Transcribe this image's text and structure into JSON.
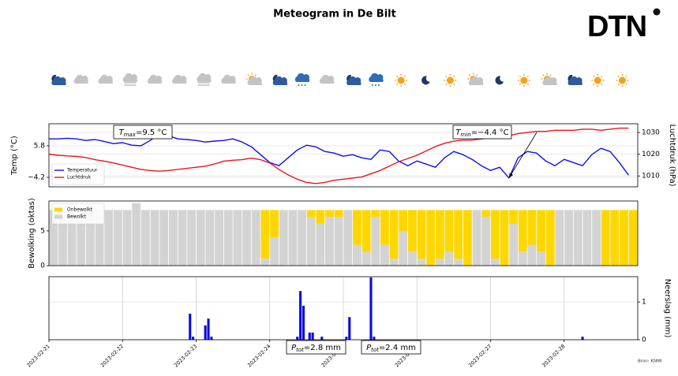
{
  "title": "Meteogram in De Bilt",
  "logo": "DTN",
  "source": "Bron: KNMI",
  "chart_data": [
    {
      "type": "line",
      "ylabel": "Temp (°C)",
      "y2label": "Luchtdruk (hPa)",
      "x": [
        "2023-02-21T00:00",
        "2023-02-21T03:00",
        "2023-02-21T06:00",
        "2023-02-21T09:00",
        "2023-02-21T12:00",
        "2023-02-21T15:00",
        "2023-02-21T18:00",
        "2023-02-21T21:00",
        "2023-02-22T00:00",
        "2023-02-22T03:00",
        "2023-02-22T06:00",
        "2023-02-22T09:00",
        "2023-02-22T12:00",
        "2023-02-22T15:00",
        "2023-02-22T18:00",
        "2023-02-22T21:00",
        "2023-02-23T00:00",
        "2023-02-23T03:00",
        "2023-02-23T06:00",
        "2023-02-23T09:00",
        "2023-02-23T12:00",
        "2023-02-23T15:00",
        "2023-02-23T18:00",
        "2023-02-23T21:00",
        "2023-02-24T00:00",
        "2023-02-24T03:00",
        "2023-02-24T06:00",
        "2023-02-24T09:00",
        "2023-02-24T12:00",
        "2023-02-24T15:00",
        "2023-02-24T18:00",
        "2023-02-24T21:00",
        "2023-02-25T00:00",
        "2023-02-25T03:00",
        "2023-02-25T06:00",
        "2023-02-25T09:00",
        "2023-02-25T12:00",
        "2023-02-25T15:00",
        "2023-02-25T18:00",
        "2023-02-25T21:00",
        "2023-02-26T00:00",
        "2023-02-26T03:00",
        "2023-02-26T06:00",
        "2023-02-26T09:00",
        "2023-02-26T12:00",
        "2023-02-26T15:00",
        "2023-02-26T18:00",
        "2023-02-26T21:00",
        "2023-02-27T00:00",
        "2023-02-27T03:00",
        "2023-02-27T06:00",
        "2023-02-27T09:00",
        "2023-02-27T12:00",
        "2023-02-27T15:00",
        "2023-02-27T18:00",
        "2023-02-27T21:00",
        "2023-02-28T00:00",
        "2023-02-28T03:00",
        "2023-02-28T06:00",
        "2023-02-28T09:00",
        "2023-02-28T12:00",
        "2023-02-28T15:00",
        "2023-02-28T18:00",
        "2023-02-28T21:00"
      ],
      "xlim": [
        "2023-02-21",
        "2023-03-01"
      ],
      "ylim": [
        -7.2,
        12.8
      ],
      "yticks": [
        {
          "value": -4.2,
          "label": "−4.2"
        },
        5.8
      ],
      "y2lim": [
        1005,
        1034
      ],
      "y2ticks": [
        1010,
        1020,
        1030
      ],
      "grid": true,
      "legend": "lower left",
      "series": [
        {
          "name": "Temperatuur",
          "color": "#1010f0",
          "values": [
            8.0,
            8.0,
            8.2,
            8.0,
            7.5,
            7.8,
            7.2,
            6.5,
            6.8,
            6.0,
            5.8,
            7.5,
            9.5,
            9.0,
            8.0,
            7.8,
            7.5,
            7.0,
            7.3,
            7.5,
            8.0,
            7.0,
            5.5,
            3.0,
            0.5,
            -0.5,
            2.0,
            4.5,
            6.0,
            5.5,
            4.0,
            3.5,
            2.5,
            3.0,
            2.0,
            1.5,
            4.5,
            4.0,
            1.0,
            -0.5,
            1.0,
            0.0,
            -1.0,
            2.0,
            4.0,
            3.0,
            1.5,
            -0.5,
            -2.0,
            -1.0,
            -4.4,
            2.0,
            4.0,
            3.5,
            1.0,
            -0.5,
            1.5,
            0.5,
            -0.5,
            3.0,
            5.0,
            4.0,
            0.5,
            -3.5
          ]
        },
        {
          "name": "Luchtdruk",
          "color": "#e8161b",
          "axis": "y2",
          "values": [
            1020.0,
            1019.5,
            1019.2,
            1019.0,
            1018.5,
            1017.5,
            1016.8,
            1016.0,
            1015.0,
            1014.0,
            1013.0,
            1012.5,
            1012.2,
            1012.5,
            1013.0,
            1013.5,
            1014.0,
            1014.5,
            1015.5,
            1016.8,
            1017.2,
            1017.5,
            1018.2,
            1017.5,
            1016.0,
            1013.0,
            1010.5,
            1008.5,
            1007.0,
            1006.5,
            1007.0,
            1008.0,
            1008.5,
            1009.0,
            1009.5,
            1011.0,
            1012.5,
            1014.5,
            1016.5,
            1018.0,
            1019.5,
            1021.5,
            1023.5,
            1025.0,
            1026.0,
            1026.5,
            1026.5,
            1027.0,
            1027.5,
            1028.0,
            1028.5,
            1029.5,
            1030.0,
            1030.5,
            1030.5,
            1031.0,
            1031.0,
            1031.0,
            1031.5,
            1031.5,
            1031.0,
            1031.5,
            1032.0,
            1032.0
          ]
        }
      ],
      "annotations": [
        {
          "symbol": "T",
          "subscript": "max",
          "text": "=9.5 °C"
        },
        {
          "symbol": "T",
          "subscript": "min",
          "text": "=−4.4 °C"
        }
      ]
    },
    {
      "type": "bar",
      "stacked": true,
      "ylabel": "Bewolking (oktas)",
      "x": [
        "2023-02-21T00:00",
        "2023-02-21T03:00",
        "2023-02-21T06:00",
        "2023-02-21T09:00",
        "2023-02-21T12:00",
        "2023-02-21T15:00",
        "2023-02-21T18:00",
        "2023-02-21T21:00",
        "2023-02-22T00:00",
        "2023-02-22T03:00",
        "2023-02-22T06:00",
        "2023-02-22T09:00",
        "2023-02-22T12:00",
        "2023-02-22T15:00",
        "2023-02-22T18:00",
        "2023-02-22T21:00",
        "2023-02-23T00:00",
        "2023-02-23T03:00",
        "2023-02-23T06:00",
        "2023-02-23T09:00",
        "2023-02-23T12:00",
        "2023-02-23T15:00",
        "2023-02-23T18:00",
        "2023-02-23T21:00",
        "2023-02-24T00:00",
        "2023-02-24T03:00",
        "2023-02-24T06:00",
        "2023-02-24T09:00",
        "2023-02-24T12:00",
        "2023-02-24T15:00",
        "2023-02-24T18:00",
        "2023-02-24T21:00",
        "2023-02-25T00:00",
        "2023-02-25T03:00",
        "2023-02-25T06:00",
        "2023-02-25T09:00",
        "2023-02-25T12:00",
        "2023-02-25T15:00",
        "2023-02-25T18:00",
        "2023-02-25T21:00",
        "2023-02-26T00:00",
        "2023-02-26T03:00",
        "2023-02-26T06:00",
        "2023-02-26T09:00",
        "2023-02-26T12:00",
        "2023-02-26T15:00",
        "2023-02-26T18:00",
        "2023-02-26T21:00",
        "2023-02-27T00:00",
        "2023-02-27T03:00",
        "2023-02-27T06:00",
        "2023-02-27T09:00",
        "2023-02-27T12:00",
        "2023-02-27T15:00",
        "2023-02-27T18:00",
        "2023-02-27T21:00",
        "2023-02-28T00:00",
        "2023-02-28T03:00",
        "2023-02-28T06:00",
        "2023-02-28T09:00",
        "2023-02-28T12:00",
        "2023-02-28T15:00",
        "2023-02-28T18:00",
        "2023-02-28T21:00"
      ],
      "xlim": [
        "2023-02-21",
        "2023-03-01"
      ],
      "ylim": [
        0,
        9.3
      ],
      "yticks": [
        0,
        5
      ],
      "legend": "upper left",
      "series": [
        {
          "name": "Onbewolkt",
          "color": "#ffd700",
          "values": [
            0,
            0,
            0,
            0,
            0,
            0,
            0,
            0,
            0,
            0,
            0,
            0,
            0,
            0,
            0,
            0,
            0,
            0,
            0,
            0,
            0,
            0,
            0,
            7,
            4,
            0,
            0,
            0,
            1,
            2,
            1,
            1,
            0,
            5,
            6,
            1,
            5,
            7,
            3,
            6,
            7,
            8,
            7,
            6,
            7,
            8,
            0,
            1,
            7,
            8,
            2,
            6,
            5,
            6,
            8,
            0,
            0,
            0,
            0,
            0,
            8,
            8,
            8,
            8
          ]
        },
        {
          "name": "Bewolkt",
          "color": "#d3d3d3",
          "values": [
            8,
            8,
            8,
            8,
            8,
            8,
            8,
            8,
            8,
            9,
            8,
            8,
            8,
            8,
            8,
            8,
            8,
            8,
            8,
            8,
            8,
            8,
            8,
            1,
            4,
            8,
            8,
            8,
            7,
            6,
            7,
            7,
            8,
            3,
            2,
            7,
            3,
            1,
            5,
            2,
            1,
            0,
            1,
            2,
            1,
            0,
            8,
            7,
            1,
            0,
            6,
            2,
            3,
            2,
            0,
            8,
            8,
            8,
            8,
            8,
            0,
            0,
            0,
            0
          ]
        }
      ]
    },
    {
      "type": "bar",
      "y2label": "Neerslag (mm)",
      "x": [
        "2023-02-22T22:00",
        "2023-02-22T23:00",
        "2023-02-23T03:00",
        "2023-02-23T04:00",
        "2023-02-23T05:00",
        "2023-02-24T09:00",
        "2023-02-24T10:00",
        "2023-02-24T11:00",
        "2023-02-24T13:00",
        "2023-02-24T14:00",
        "2023-02-24T17:00",
        "2023-02-25T01:00",
        "2023-02-25T02:00",
        "2023-02-25T09:00",
        "2023-02-25T10:00",
        "2023-02-28T06:00"
      ],
      "xlim": [
        "2023-02-21",
        "2023-03-01"
      ],
      "xticks": [
        "2023-02-21",
        "2023-02-22",
        "2023-02-23",
        "2023-02-24",
        "2023-02-25",
        "2023-02-26",
        "2023-02-27",
        "2023-02-28"
      ],
      "y2lim": [
        0,
        1.67
      ],
      "y2ticks": [
        0,
        1
      ],
      "grid": true,
      "series": [
        {
          "color": "#0a0ae0",
          "axis": "y2",
          "values": [
            0.69,
            0.08,
            0.38,
            0.56,
            0.08,
            0.08,
            1.29,
            0.9,
            0.19,
            0.19,
            0.08,
            0.08,
            0.6,
            1.65,
            0.08,
            0.08
          ]
        }
      ],
      "annotations": [
        {
          "symbol": "P",
          "subscript": "tot",
          "text": "=2.8 mm"
        },
        {
          "symbol": "P",
          "subscript": "tot",
          "text": "=2.4 mm"
        }
      ]
    }
  ]
}
